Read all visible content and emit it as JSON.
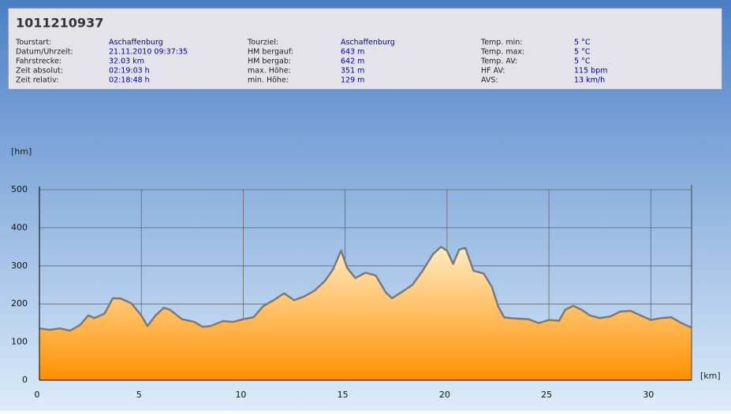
{
  "header": {
    "title": "1011210937"
  },
  "info": {
    "rows": [
      [
        "Tourstart:",
        "Aschaffenburg",
        "Tourziel:",
        "Aschaffenburg",
        "Temp. min:",
        "5 °C"
      ],
      [
        "Datum/Uhrzeit:",
        "21.11.2010 09:37:35",
        "HM bergauf:",
        "643 m",
        "Temp. max:",
        "5 °C"
      ],
      [
        "Fahrstrecke:",
        "32.03 km",
        "HM bergab:",
        "642 m",
        "Temp. AV:",
        "5 °C"
      ],
      [
        "Zeit absolut:",
        "02:19:03 h",
        "max. Höhe:",
        "351 m",
        "HF AV:",
        "115 bpm"
      ],
      [
        "Zeit relativ:",
        "02:18:48 h",
        "min. Höhe:",
        "129 m",
        "AVS:",
        "13 km/h"
      ]
    ]
  },
  "chart_data": {
    "type": "area",
    "y_label": "[hm]",
    "x_label": "[km]",
    "x": [
      0,
      0.5,
      1.0,
      1.5,
      2.0,
      2.4,
      2.7,
      3.2,
      3.6,
      4.0,
      4.5,
      5.0,
      5.3,
      5.7,
      6.1,
      6.4,
      7.0,
      7.6,
      8.0,
      8.4,
      9.0,
      9.5,
      10.0,
      10.5,
      11.0,
      11.5,
      12.0,
      12.5,
      13.0,
      13.5,
      14.0,
      14.4,
      14.8,
      15.1,
      15.5,
      16.0,
      16.5,
      17.0,
      17.3,
      17.8,
      18.3,
      18.8,
      19.3,
      19.7,
      20.0,
      20.3,
      20.6,
      20.9,
      21.3,
      21.8,
      22.2,
      22.5,
      22.8,
      23.3,
      24.0,
      24.5,
      25.0,
      25.5,
      25.8,
      26.2,
      26.6,
      27.0,
      27.5,
      28.0,
      28.5,
      29.0,
      29.5,
      30.0,
      30.5,
      31.0,
      31.5,
      32.0
    ],
    "series": [
      {
        "color": "#ff9000",
        "values": [
          136,
          132,
          136,
          130,
          145,
          170,
          163,
          175,
          215,
          214,
          202,
          170,
          142,
          170,
          190,
          185,
          160,
          153,
          140,
          142,
          155,
          153,
          160,
          165,
          195,
          210,
          228,
          210,
          220,
          235,
          260,
          290,
          340,
          295,
          268,
          282,
          275,
          230,
          215,
          232,
          250,
          287,
          330,
          350,
          340,
          305,
          343,
          347,
          287,
          280,
          245,
          195,
          165,
          162,
          160,
          150,
          158,
          156,
          185,
          195,
          185,
          170,
          163,
          167,
          180,
          182,
          170,
          158,
          163,
          165,
          150,
          138
        ]
      }
    ],
    "xlim": [
      0,
      32
    ],
    "ylim": [
      0,
      500
    ],
    "xticks": [
      0,
      5,
      10,
      15,
      20,
      25,
      30
    ],
    "yticks": [
      0,
      100,
      200,
      300,
      400,
      500
    ],
    "grid": true
  }
}
